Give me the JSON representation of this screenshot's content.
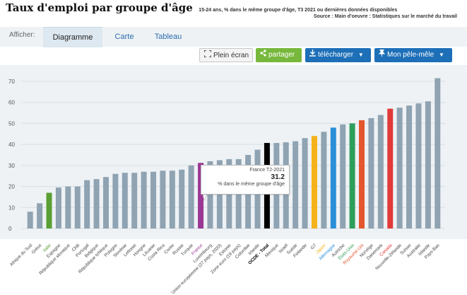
{
  "header": {
    "title": "Taux d'emploi par groupe d'âge",
    "subtitle": "15-24 ans, % dans le même groupe d'âge, T3 2021 ou dernières données disponibles",
    "source": "Source : Main d'oeuvre : Statistiques sur le marché du travail"
  },
  "tabs": {
    "label": "Afficher:",
    "items": [
      "Diagramme",
      "Carte",
      "Tableau"
    ]
  },
  "buttons": {
    "plein_ecran": "Plein écran",
    "partager": "partager",
    "telecharger": "télécharger",
    "pele_mele": "Mon pêle-mêle"
  },
  "icons": {
    "plein_ecran": "expand-icon",
    "partager": "share-icon",
    "telecharger": "download-icon",
    "pele_mele": "pin-icon"
  },
  "tooltip": {
    "title": "France T2-2021",
    "value": "31.2",
    "unit": "% dans le même groupe d'âge"
  },
  "colors": {
    "default_bar": "#8fa3b2",
    "france": "#9b3794",
    "italie": "#5a9f34",
    "ocde": "#000000",
    "g7": "#f5b21a",
    "allemagne": "#2b8fd8",
    "etats_unis": "#2e9e5b",
    "royaume_uni": "#e4572e",
    "canada": "#e23a3a"
  },
  "chart_data": {
    "type": "bar",
    "ylim": [
      0,
      75
    ],
    "yticks": [
      0,
      10,
      20,
      30,
      40,
      50,
      60,
      70
    ],
    "grid": true,
    "categories": [
      "Afrique du Sud",
      "Grèce",
      "Italie",
      "Espagne",
      "République slovaque",
      "Chili",
      "Portugal",
      "Belgique",
      "République tchèque",
      "Pologne",
      "Slovénie",
      "Lettonie",
      "Hongrie",
      "Lituanie",
      "Costa Rica",
      "Corée",
      "Russie",
      "Turquie",
      "France",
      "Luxembourg",
      "Union européenne (27 pays, 2020)",
      "Estonie",
      "Zone euro (19 pays)",
      "Colombie",
      "Irlande",
      "OCDE - Total",
      "Mexique",
      "Israël",
      "Suède",
      "Finlande",
      "G7",
      "Japon",
      "Allemagne",
      "Autriche",
      "États-Unis",
      "Royaume-Uni",
      "Norvège",
      "Danemark",
      "Canada",
      "Nouvelle-Zélande",
      "Suisse",
      "Australie",
      "Islande",
      "Pays-Bas"
    ],
    "values": [
      8,
      12,
      17,
      19.5,
      20,
      20,
      23,
      23.5,
      24.5,
      26,
      26.5,
      26.5,
      27,
      27,
      27.5,
      27.5,
      28,
      30,
      31.2,
      32,
      32.5,
      33,
      33,
      35,
      37.5,
      40.7,
      40.7,
      41,
      41.5,
      43,
      44,
      46,
      48,
      49.5,
      50,
      51.5,
      52.5,
      54,
      57,
      57.5,
      58.5,
      59.5,
      60.5,
      71.5
    ],
    "highlight_colors": {
      "Italie": "#5a9f34",
      "France": "#9b3794",
      "OCDE - Total": "#000000",
      "G7": "#f5b21a",
      "Allemagne": "#2b8fd8",
      "États-Unis": "#2e9e5b",
      "Royaume-Uni": "#e4572e",
      "Canada": "#e23a3a"
    },
    "label_colors": {
      "Italie": "#5a9f34",
      "France": "#9b3794",
      "OCDE - Total": "#000000",
      "Japon": "#f5b21a",
      "Allemagne": "#2b8fd8",
      "États-Unis": "#2e9e5b",
      "Royaume-Uni": "#e4572e",
      "Canada": "#e23a3a"
    },
    "bold_labels": [
      "OCDE - Total"
    ]
  }
}
